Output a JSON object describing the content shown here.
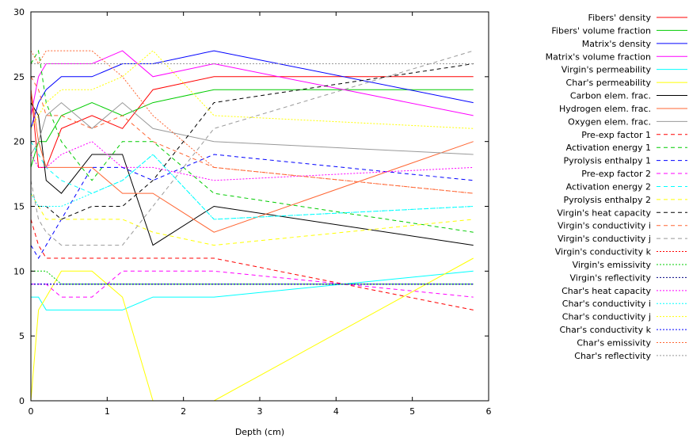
{
  "chart_data": {
    "type": "line",
    "xlabel": "Depth (cm)",
    "ylabel": "",
    "xlim": [
      0,
      6
    ],
    "ylim": [
      0,
      30
    ],
    "xticks": [
      "0",
      "1",
      "2",
      "3",
      "4",
      "5",
      "6"
    ],
    "yticks": [
      "0",
      "5",
      "10",
      "15",
      "20",
      "25",
      "30"
    ],
    "grid": false,
    "legend_position": "right",
    "series": [
      {
        "name": "Fibers' density",
        "color": "#ff0000",
        "dash": "solid",
        "x": [
          0,
          0.1,
          0.2,
          0.4,
          0.8,
          1.2,
          1.6,
          2.4,
          5.8
        ],
        "y": [
          24,
          18,
          18,
          21,
          22,
          21,
          24,
          25,
          25
        ]
      },
      {
        "name": "Fibers' volume fraction",
        "color": "#00cc00",
        "dash": "solid",
        "x": [
          0,
          0.1,
          0.2,
          0.4,
          0.8,
          1.2,
          1.6,
          2.4,
          5.8
        ],
        "y": [
          18,
          20,
          20,
          22,
          23,
          22,
          23,
          24,
          24
        ]
      },
      {
        "name": "Matrix's density",
        "color": "#0000ff",
        "dash": "solid",
        "x": [
          0,
          0.1,
          0.2,
          0.4,
          0.8,
          1.2,
          1.6,
          2.4,
          5.8
        ],
        "y": [
          21,
          23,
          24,
          25,
          25,
          26,
          26,
          27,
          23
        ]
      },
      {
        "name": "Matrix's volume fraction",
        "color": "#ff00ff",
        "dash": "solid",
        "x": [
          0,
          0.1,
          0.2,
          0.4,
          0.8,
          1.2,
          1.6,
          2.4,
          5.8
        ],
        "y": [
          22,
          25,
          26,
          26,
          26,
          27,
          25,
          26,
          22
        ]
      },
      {
        "name": "Virgin's permeability",
        "color": "#00ffff",
        "dash": "solid",
        "x": [
          0,
          0.1,
          0.2,
          0.4,
          0.8,
          1.2,
          1.6,
          2.4,
          5.8
        ],
        "y": [
          8,
          8,
          7,
          7,
          7,
          7,
          8,
          8,
          10
        ]
      },
      {
        "name": "Char's permeability",
        "color": "#ffff00",
        "dash": "solid",
        "x": [
          0,
          0.1,
          0.2,
          0.4,
          0.8,
          1.2,
          1.6,
          2.4,
          5.8
        ],
        "y": [
          0,
          7,
          8,
          10,
          10,
          8,
          0,
          0,
          11
        ]
      },
      {
        "name": "Carbon elem. frac.",
        "color": "#000000",
        "dash": "solid",
        "x": [
          0,
          0.1,
          0.2,
          0.4,
          0.8,
          1.2,
          1.6,
          2.4,
          5.8
        ],
        "y": [
          23,
          22,
          17,
          16,
          19,
          19,
          12,
          15,
          12
        ]
      },
      {
        "name": "Hydrogen elem. frac.",
        "color": "#ff6633",
        "dash": "solid",
        "x": [
          0,
          0.1,
          0.2,
          0.4,
          0.8,
          1.2,
          1.6,
          2.4,
          5.8
        ],
        "y": [
          24,
          20,
          18,
          18,
          18,
          16,
          16,
          13,
          20
        ]
      },
      {
        "name": "Oxygen elem. frac.",
        "color": "#999999",
        "dash": "solid",
        "x": [
          0,
          0.1,
          0.2,
          0.4,
          0.8,
          1.2,
          1.6,
          2.4,
          5.8
        ],
        "y": [
          19,
          20,
          22,
          23,
          21,
          23,
          21,
          20,
          19
        ]
      },
      {
        "name": "Pre-exp factor 1",
        "color": "#ff0000",
        "dash": "dashed",
        "x": [
          0,
          0.1,
          0.2,
          0.4,
          0.8,
          1.2,
          1.6,
          2.4,
          5.8
        ],
        "y": [
          14,
          12,
          11,
          11,
          11,
          11,
          11,
          11,
          7
        ]
      },
      {
        "name": "Activation energy 1",
        "color": "#00cc00",
        "dash": "dashed",
        "x": [
          0,
          0.1,
          0.2,
          0.4,
          0.8,
          1.2,
          1.6,
          2.4,
          5.8
        ],
        "y": [
          26,
          27,
          23,
          20,
          17,
          20,
          20,
          16,
          13
        ]
      },
      {
        "name": "Pyrolysis enthalpy 1",
        "color": "#0000ff",
        "dash": "dashed",
        "x": [
          0,
          0.1,
          0.2,
          0.4,
          0.8,
          1.2,
          1.6,
          2.4,
          5.8
        ],
        "y": [
          12,
          11,
          12,
          14,
          18,
          18,
          17,
          19,
          17
        ]
      },
      {
        "name": "Pre-exp factor 2",
        "color": "#ff00ff",
        "dash": "dashed",
        "x": [
          0,
          0.1,
          0.2,
          0.4,
          0.8,
          1.2,
          1.6,
          2.4,
          5.8
        ],
        "y": [
          9,
          9,
          9,
          8,
          8,
          10,
          10,
          10,
          8
        ]
      },
      {
        "name": "Activation energy 2",
        "color": "#00ffff",
        "dash": "dashed",
        "x": [
          0,
          0.1,
          0.2,
          0.4,
          0.8,
          1.2,
          1.6,
          2.4,
          5.8
        ],
        "y": [
          20,
          19,
          18,
          17,
          16,
          17,
          19,
          14,
          15
        ]
      },
      {
        "name": "Pyrolysis enthalpy 2",
        "color": "#ffff00",
        "dash": "dashed",
        "x": [
          0,
          0.1,
          0.2,
          0.4,
          0.8,
          1.2,
          1.6,
          2.4,
          5.8
        ],
        "y": [
          16,
          15,
          14,
          14,
          14,
          14,
          13,
          12,
          14
        ]
      },
      {
        "name": "Virgin's heat capacity",
        "color": "#000000",
        "dash": "dashed",
        "x": [
          0,
          0.1,
          0.2,
          0.4,
          0.8,
          1.2,
          1.6,
          2.4,
          5.8
        ],
        "y": [
          15,
          15,
          15,
          14,
          15,
          15,
          17,
          23,
          26
        ]
      },
      {
        "name": "Virgin's conductivity i",
        "color": "#ff6633",
        "dash": "dashed",
        "x": [
          0,
          0.1,
          0.2,
          0.4,
          0.8,
          1.2,
          1.6,
          2.4,
          5.8
        ],
        "y": [
          25,
          24,
          22,
          22,
          21,
          22,
          20,
          18,
          16
        ]
      },
      {
        "name": "Virgin's conductivity j",
        "color": "#999999",
        "dash": "dashed",
        "x": [
          0,
          0.1,
          0.2,
          0.4,
          0.8,
          1.2,
          1.6,
          2.4,
          5.8
        ],
        "y": [
          17,
          14,
          13,
          12,
          12,
          12,
          15,
          21,
          27
        ]
      },
      {
        "name": "Virgin's conductivity k",
        "color": "#ff0000",
        "dash": "dotted",
        "x": [
          0,
          0.1,
          0.2,
          0.4,
          0.8,
          1.2,
          1.6,
          2.4,
          5.8
        ],
        "y": [
          9,
          9,
          9,
          9,
          9,
          9,
          9,
          9,
          9
        ]
      },
      {
        "name": "Virgin's emissivity",
        "color": "#00cc00",
        "dash": "dotted",
        "x": [
          0,
          0.1,
          0.2,
          0.4,
          0.8,
          1.2,
          1.6,
          2.4,
          5.8
        ],
        "y": [
          10,
          10,
          10,
          9,
          9,
          9,
          9,
          9,
          9
        ]
      },
      {
        "name": "Virgin's reflectivity",
        "color": "#000080",
        "dash": "dotted",
        "x": [
          0,
          5.8
        ],
        "y": [
          9,
          9
        ]
      },
      {
        "name": "Char's heat capacity",
        "color": "#ff00ff",
        "dash": "dotted",
        "x": [
          0,
          0.1,
          0.2,
          0.4,
          0.8,
          1.2,
          1.6,
          2.4,
          5.8
        ],
        "y": [
          19,
          18,
          18,
          19,
          20,
          18,
          18,
          17,
          18
        ]
      },
      {
        "name": "Char's conductivity i",
        "color": "#00ffff",
        "dash": "dotted",
        "x": [
          0,
          0.1,
          0.2,
          0.4,
          0.8,
          1.2,
          1.6,
          2.4,
          5.8
        ],
        "y": [
          16,
          15,
          15,
          15,
          16,
          17,
          19,
          14,
          15
        ]
      },
      {
        "name": "Char's conductivity j",
        "color": "#ffff00",
        "dash": "dotted",
        "x": [
          0,
          0.1,
          0.2,
          0.4,
          0.8,
          1.2,
          1.6,
          2.4,
          5.8
        ],
        "y": [
          21,
          22,
          23,
          24,
          24,
          25,
          27,
          22,
          21
        ]
      },
      {
        "name": "Char's conductivity k",
        "color": "#0000ff",
        "dash": "dotted",
        "x": [
          0,
          5.8
        ],
        "y": [
          9,
          9
        ]
      },
      {
        "name": "Char's emissivity",
        "color": "#ff6633",
        "dash": "dotted",
        "x": [
          0,
          0.1,
          0.2,
          0.4,
          0.8,
          1.2,
          1.6,
          2.4,
          5.8
        ],
        "y": [
          27,
          26,
          27,
          27,
          27,
          25,
          22,
          18,
          16
        ]
      },
      {
        "name": "Char's reflectivity",
        "color": "#999999",
        "dash": "dotted",
        "x": [
          0,
          0.1,
          0.2,
          0.4,
          0.8,
          1.2,
          1.6,
          2.4,
          5.8
        ],
        "y": [
          26,
          26,
          26,
          26,
          26,
          26,
          26,
          26,
          26
        ]
      }
    ]
  }
}
